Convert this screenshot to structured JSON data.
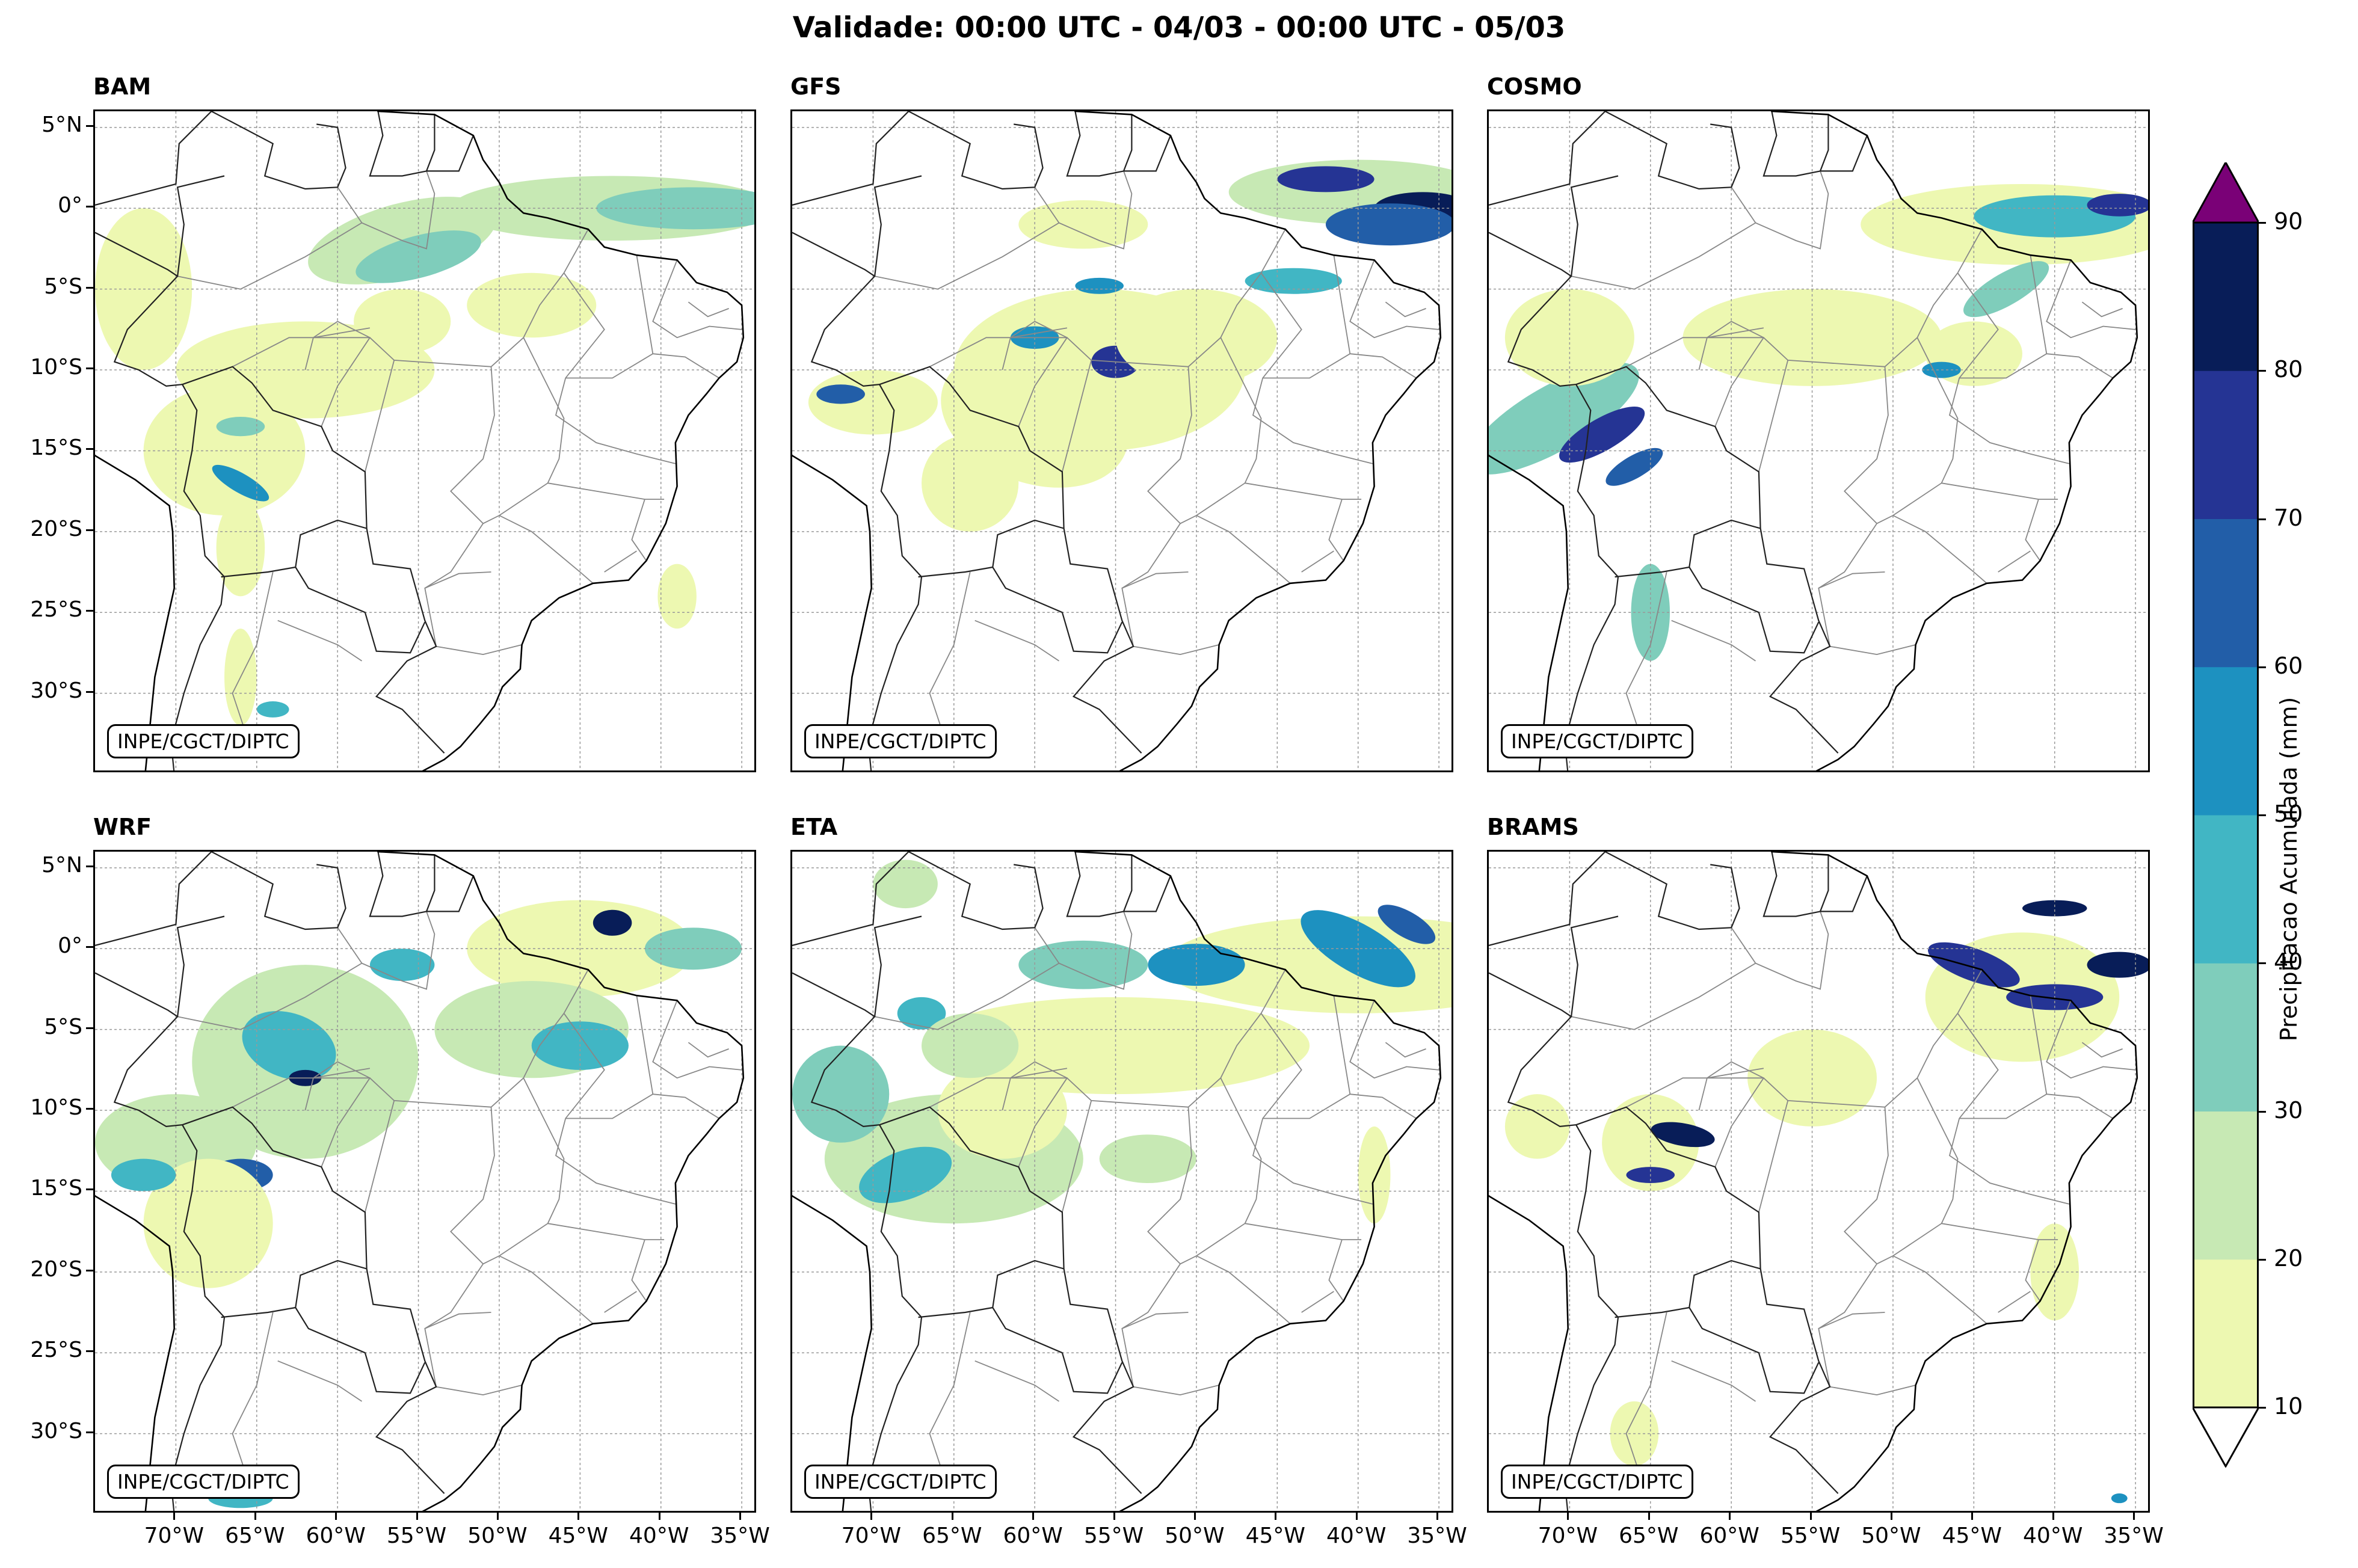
{
  "title": "Validade: 00:00 UTC - 04/03 - 00:00 UTC - 05/03",
  "credit": "INPE/CGCT/DIPTC",
  "panels": [
    {
      "name": "BAM"
    },
    {
      "name": "GFS"
    },
    {
      "name": "COSMO"
    },
    {
      "name": "WRF"
    },
    {
      "name": "ETA"
    },
    {
      "name": "BRAMS"
    }
  ],
  "lat_ticks": [
    "5°N",
    "0°",
    "5°S",
    "10°S",
    "15°S",
    "20°S",
    "25°S",
    "30°S"
  ],
  "lon_ticks": [
    "70°W",
    "65°W",
    "60°W",
    "55°W",
    "50°W",
    "45°W",
    "40°W",
    "35°W"
  ],
  "colorbar": {
    "label": "Precipitacao Acumulada (mm)",
    "ticks": [
      "10",
      "20",
      "30",
      "40",
      "50",
      "60",
      "70",
      "80",
      "90"
    ],
    "levels": [
      10,
      20,
      30,
      40,
      50,
      60,
      70,
      80,
      90
    ],
    "colors": [
      "#edf8b1",
      "#c7e9b4",
      "#7fcdbb",
      "#41b6c4",
      "#1d91c0",
      "#225ea8",
      "#253494",
      "#081d58"
    ],
    "over_color": "#7a0177",
    "under_color": "#ffffff"
  },
  "map_extent": {
    "lon": [
      -75,
      -34
    ],
    "lat": [
      -35,
      6
    ]
  }
}
